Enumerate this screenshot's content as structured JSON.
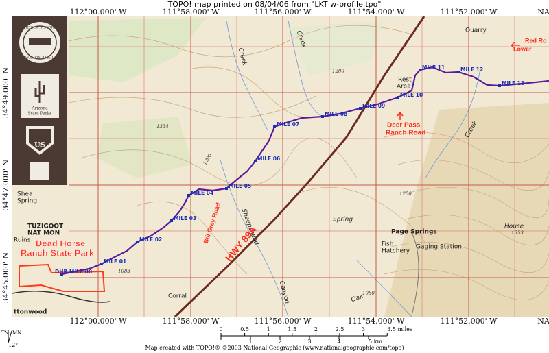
{
  "header": {
    "title": "TOPO! map printed on 08/04/06 from \"LKT w-profile.tpo\""
  },
  "map": {
    "longitude_top": [
      "112°00.000' W",
      "111°58.000' W",
      "111°56.000' W",
      "111°54.000' W",
      "111°52.000' W",
      "NA"
    ],
    "longitude_bottom": [
      "112°00.000' W",
      "111°58.000' W",
      "111°56.000' W",
      "111°54.000' W",
      "111°52.000' W",
      "NA"
    ],
    "latitude": [
      "34°49.000' N",
      "34°47.000' N",
      "34°45.000' N"
    ],
    "trail_markers": [
      "DHR MILE 00",
      "MILE 01",
      "MILE 02",
      "MILE 03",
      "MILE 04",
      "MILE 05",
      "MILE 06",
      "MILE 07",
      "MILE 08",
      "MILE 09",
      "MILE 10",
      "MILE 11",
      "MILE 12",
      "MILE 13"
    ],
    "red_labels": {
      "dead_horse": [
        "Dead Horse",
        "Ranch State Park"
      ],
      "deer_pass": [
        "Deer Pass",
        "Ranch Road"
      ],
      "red_rock": [
        "Red Ro",
        "Lower"
      ],
      "highway": "HWY 89A",
      "bill_grey": "Bill Grey Road"
    },
    "place_labels": {
      "page_springs": "Page Springs",
      "gaging_station": "Gaging Station",
      "fish_hatchery": [
        "Fish",
        "Hatchery"
      ],
      "quarry": "Quarry",
      "rest_area": [
        "Rest",
        "Area"
      ],
      "tuzigoot": [
        "TUZIGOOT",
        "NAT MON"
      ],
      "sheepshead": "Sheepshead",
      "canyon": "Canyon",
      "creek_1": "Creek",
      "creek_2": "Creek",
      "creek_3": "Creek",
      "spring": "Spring",
      "shea_spring": [
        "Shea",
        "Spring"
      ],
      "house": "House",
      "corral": "Corral",
      "oak": "Oak",
      "cottonwood": "ttonwood",
      "ruins": "Ruins"
    },
    "elevations": [
      "1334",
      "1200",
      "1250",
      "1553",
      "1083",
      "1080",
      "1200"
    ]
  },
  "sidebar": {
    "wagon_trail": [
      "THE ELK HISTORIC",
      "WAGON TRAIL"
    ],
    "state_parks": [
      "Arizona",
      "State Parks"
    ],
    "forest_service": "US"
  },
  "footer": {
    "scale_miles": [
      "0",
      "0.5",
      "1",
      "1.5",
      "2",
      "2.5",
      "3",
      "3.5 miles"
    ],
    "scale_km": [
      "0",
      "1",
      "2",
      "3",
      "4",
      "5 km"
    ],
    "north": {
      "true": "TN",
      "magnetic": "MN",
      "declination": "12°"
    },
    "credit": "Map created with TOPO!® ©2003 National Geographic (www.nationalgeographic.com/topo)"
  }
}
